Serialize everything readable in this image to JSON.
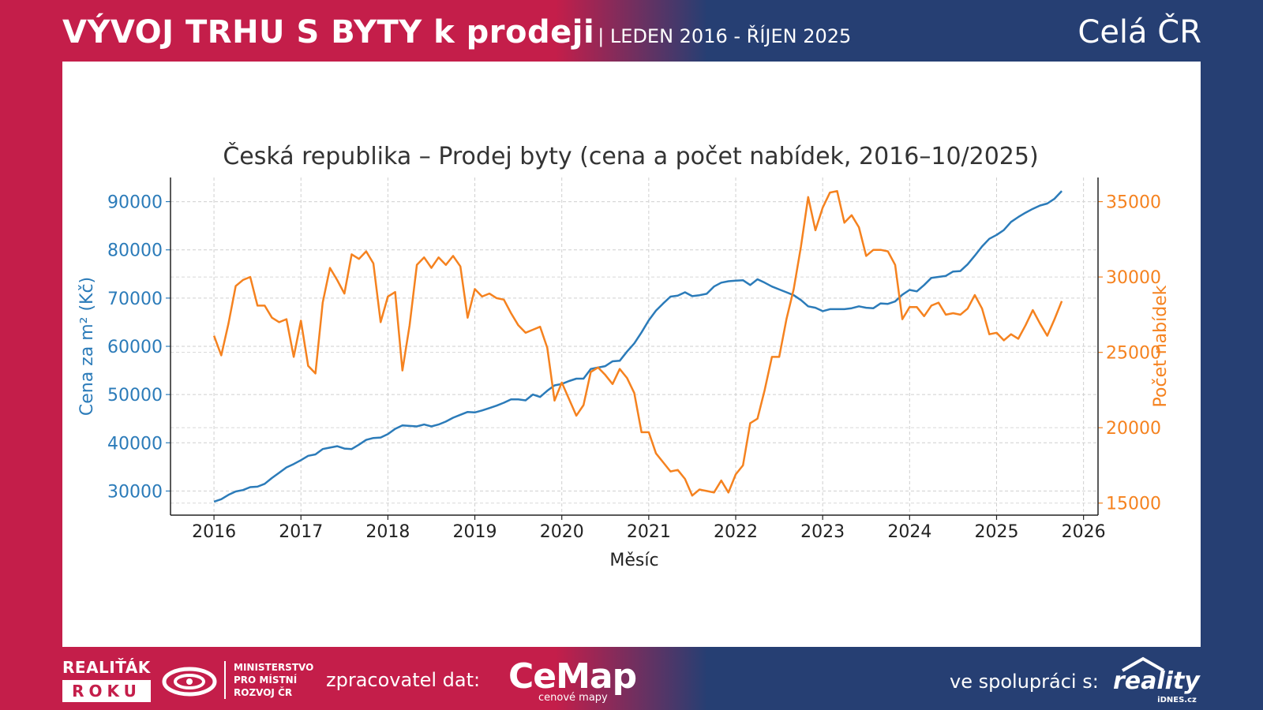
{
  "header": {
    "title": "VÝVOJ TRHU S BYTY k prodeji",
    "subtitle": "| LEDEN 2016 - ŘÍJEN 2025",
    "region": "Celá ČR"
  },
  "colors": {
    "price": "#2b7bb9",
    "offers": "#f5821f",
    "brand_red": "#c41e4a",
    "brand_blue": "#263f73"
  },
  "chart_data": {
    "type": "line",
    "title": "Česká republika – Prodej byty (cena a počet nabídek, 2016–10/2025)",
    "xlabel": "Měsíc",
    "ylabel_left": "Cena za m² (Kč)",
    "ylabel_right": "Počet nabídek",
    "x_ticks": [
      "2016",
      "2017",
      "2018",
      "2019",
      "2020",
      "2021",
      "2022",
      "2023",
      "2024",
      "2025",
      "2026"
    ],
    "y_left_ticks": [
      "30000",
      "40000",
      "50000",
      "60000",
      "70000",
      "80000",
      "90000"
    ],
    "y_right_ticks": [
      "15000",
      "20000",
      "25000",
      "30000",
      "35000"
    ],
    "y_left_range": [
      25000,
      95000
    ],
    "y_right_range": [
      14200,
      36600
    ],
    "x_range": [
      "2015-07",
      "2026-03"
    ],
    "grid": true,
    "start": "2016-01",
    "series": [
      {
        "name": "Cena za m² (Kč)",
        "axis": "left",
        "values": [
          27800,
          28300,
          29200,
          29900,
          30200,
          30800,
          30900,
          31500,
          32700,
          33800,
          34900,
          35600,
          36400,
          37300,
          37600,
          38700,
          39000,
          39300,
          38800,
          38700,
          39600,
          40600,
          41000,
          41100,
          41800,
          42900,
          43600,
          43500,
          43400,
          43800,
          43400,
          43800,
          44400,
          45200,
          45800,
          46400,
          46300,
          46700,
          47200,
          47700,
          48300,
          49000,
          49000,
          48800,
          50000,
          49500,
          50800,
          51900,
          52200,
          52800,
          53300,
          53300,
          55300,
          55600,
          55900,
          56900,
          57000,
          58900,
          60600,
          62900,
          65400,
          67400,
          68900,
          70300,
          70500,
          71200,
          70400,
          70600,
          70900,
          72400,
          73200,
          73500,
          73600,
          73700,
          72700,
          73900,
          73200,
          72400,
          71800,
          71200,
          70600,
          69600,
          68300,
          68000,
          67300,
          67700,
          67700,
          67700,
          67900,
          68300,
          68000,
          67900,
          68900,
          68800,
          69300,
          70700,
          71700,
          71400,
          72700,
          74200,
          74400,
          74600,
          75500,
          75600,
          77000,
          78800,
          80700,
          82300,
          83100,
          84100,
          85800,
          86800,
          87700,
          88500,
          89200,
          89600,
          90600,
          92200
        ]
      },
      {
        "name": "Počet nabídek",
        "axis": "right",
        "values": [
          26100,
          24800,
          26900,
          29400,
          29800,
          30000,
          28100,
          28100,
          27300,
          27000,
          27200,
          24700,
          27100,
          24100,
          23600,
          28300,
          30600,
          29800,
          28900,
          31500,
          31200,
          31700,
          30900,
          27000,
          28700,
          29000,
          23800,
          26800,
          30800,
          31300,
          30600,
          31300,
          30800,
          31400,
          30700,
          27300,
          29200,
          28700,
          28900,
          28600,
          28500,
          27600,
          26800,
          26300,
          26500,
          26700,
          25300,
          21800,
          23000,
          21900,
          20800,
          21500,
          23700,
          24000,
          23500,
          22900,
          23900,
          23300,
          22300,
          19700,
          19700,
          18300,
          17700,
          17100,
          17200,
          16600,
          15500,
          15900,
          15800,
          15700,
          16500,
          15700,
          16900,
          17500,
          20300,
          20600,
          22500,
          24700,
          24700,
          27200,
          29200,
          32000,
          35300,
          33100,
          34600,
          35600,
          35700,
          33600,
          34100,
          33300,
          31400,
          31800,
          31800,
          31700,
          30800,
          27200,
          28000,
          28000,
          27400,
          28100,
          28300,
          27500,
          27600,
          27500,
          27900,
          28800,
          27900,
          26200,
          26300,
          25800,
          26200,
          25900,
          26800,
          27800,
          26900,
          26100,
          27200,
          28400
        ]
      }
    ]
  },
  "footer": {
    "realitak_line1": "REALIŤÁK",
    "realitak_line2": "ROKU",
    "ministry_line1": "MINISTERSTVO",
    "ministry_line2": "PRO MÍSTNÍ",
    "ministry_line3": "ROZVOJ ČR",
    "processor_label": "zpracovatel dat:",
    "cemap_name": "CeMap",
    "cemap_tag": "cenové mapy",
    "partner_label": "ve spolupráci s:",
    "reality_name": "reality",
    "reality_sub": "iDNES.cz"
  }
}
